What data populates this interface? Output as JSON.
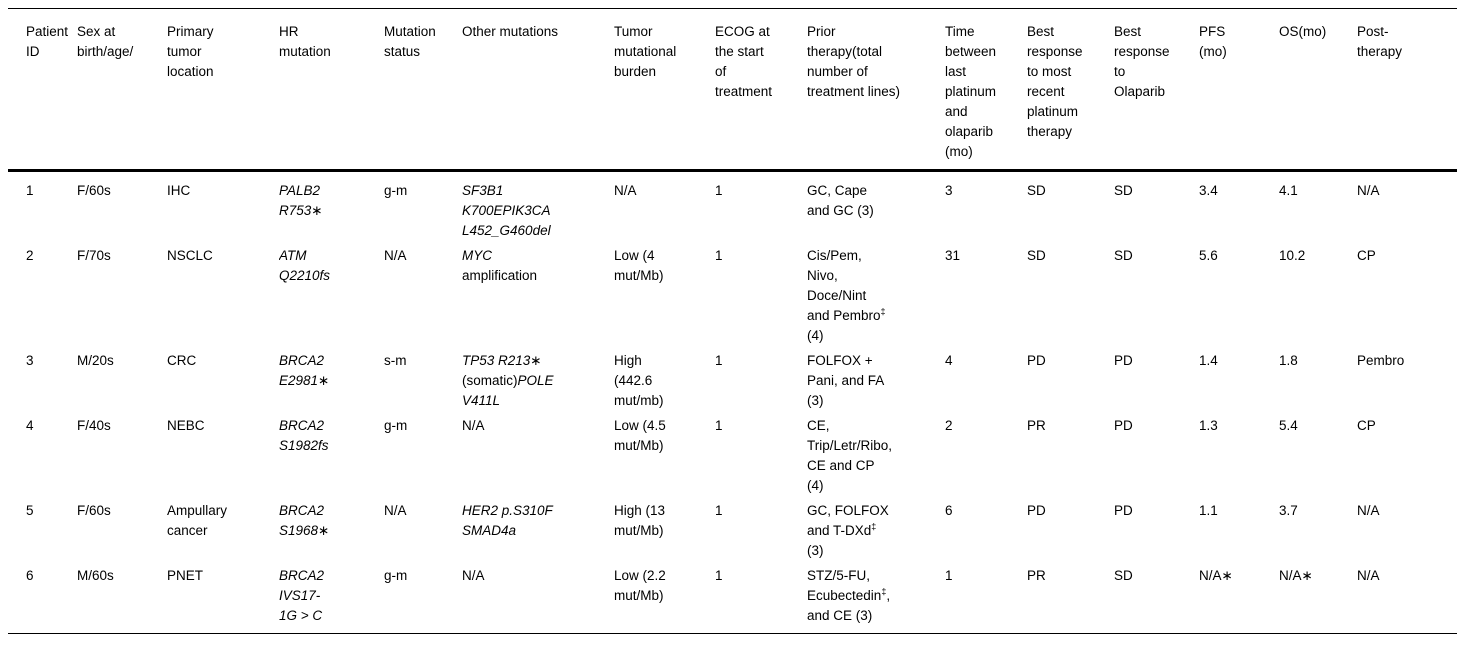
{
  "table": {
    "columns": [
      "Patient\nID",
      "Sex at\nbirth/age/",
      "Primary\ntumor\nlocation",
      "HR\nmutation",
      "Mutation\nstatus",
      "Other mutations",
      "Tumor\nmutational\nburden",
      "ECOG at\nthe start\nof\ntreatment",
      "Prior\ntherapy(total\nnumber of\ntreatment lines)",
      "Time\nbetween\nlast\nplatinum\nand\nolaparib\n(mo)",
      "Best\nresponse\nto most\nrecent\nplatinum\ntherapy",
      "Best\nresponse\nto\nOlaparib",
      "PFS\n(mo)",
      "OS(mo)",
      "Post-\ntherapy"
    ],
    "rows": [
      {
        "cells": [
          "1",
          "F/60s",
          "IHC",
          [
            {
              "t": "PALB2\nR753∗",
              "i": true
            }
          ],
          "g-m",
          [
            {
              "t": "SF3B1\nK700EPIK3CA\nL452_G460del",
              "i": true
            }
          ],
          "N/A",
          "1",
          "GC, Cape\nand GC (3)",
          "3",
          "SD",
          "SD",
          "3.4",
          "4.1",
          "N/A"
        ]
      },
      {
        "cells": [
          "2",
          "F/70s",
          "NSCLC",
          [
            {
              "t": "ATM\nQ2210fs",
              "i": true
            }
          ],
          "N/A",
          [
            {
              "t": "MYC",
              "i": true
            },
            {
              "t": "\namplification"
            }
          ],
          "Low (4\nmut/Mb)",
          "1",
          [
            {
              "t": "Cis/Pem,\nNivo,\nDoce/Nint\nand Pembro"
            },
            {
              "t": "‡",
              "sup": true
            },
            {
              "t": "\n(4)"
            }
          ],
          "31",
          "SD",
          "SD",
          "5.6",
          "10.2",
          "CP"
        ]
      },
      {
        "cells": [
          "3",
          "M/20s",
          "CRC",
          [
            {
              "t": "BRCA2\nE2981∗",
              "i": true
            }
          ],
          "s-m",
          [
            {
              "t": "TP53 R213∗\n",
              "i": true
            },
            {
              "t": "(somatic)"
            },
            {
              "t": "POLE\nV411L",
              "i": true
            }
          ],
          "High\n(442.6\nmut/mb)",
          "1",
          "FOLFOX +\nPani, and FA\n(3)",
          "4",
          "PD",
          "PD",
          "1.4",
          "1.8",
          "Pembro"
        ]
      },
      {
        "cells": [
          "4",
          "F/40s",
          "NEBC",
          [
            {
              "t": "BRCA2\nS1982fs",
              "i": true
            }
          ],
          "g-m",
          "N/A",
          "Low (4.5\nmut/Mb)",
          "1",
          "CE,\nTrip/Letr/Ribo,\nCE and CP\n(4)",
          "2",
          "PR",
          "PD",
          "1.3",
          "5.4",
          "CP"
        ]
      },
      {
        "cells": [
          "5",
          "F/60s",
          "Ampullary\ncancer",
          [
            {
              "t": "BRCA2\nS1968∗",
              "i": true
            }
          ],
          "N/A",
          [
            {
              "t": "HER2 p.S310F\nSMAD4a",
              "i": true
            }
          ],
          "High (13\nmut/Mb)",
          "1",
          [
            {
              "t": "GC, FOLFOX\nand T-DXd"
            },
            {
              "t": "‡",
              "sup": true
            },
            {
              "t": "\n(3)"
            }
          ],
          "6",
          "PD",
          "PD",
          "1.1",
          "3.7",
          "N/A"
        ]
      },
      {
        "cells": [
          "6",
          "M/60s",
          "PNET",
          [
            {
              "t": "BRCA2\nIVS17-\n1G > C",
              "i": true
            }
          ],
          "g-m",
          "N/A",
          "Low (2.2\nmut/Mb)",
          "1",
          [
            {
              "t": "STZ/5-FU,\nEcubectedin"
            },
            {
              "t": "‡",
              "sup": true
            },
            {
              "t": ",\nand CE (3)"
            }
          ],
          "1",
          "PR",
          "SD",
          "N/A∗",
          "N/A∗",
          "N/A"
        ]
      }
    ]
  },
  "colors": {
    "background": "#ffffff",
    "text": "#000000",
    "rule": "#000000"
  }
}
